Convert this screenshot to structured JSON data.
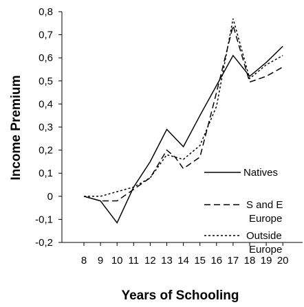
{
  "chart_data": {
    "type": "line",
    "title": "",
    "xlabel": "Years of Schooling",
    "ylabel": "Income Premium",
    "x": [
      8,
      9,
      10,
      11,
      12,
      13,
      14,
      15,
      16,
      17,
      18,
      19,
      20
    ],
    "x_tick_labels": [
      "8",
      "9",
      "10",
      "11",
      "12",
      "13",
      "14",
      "15",
      "16",
      "17",
      "18",
      "19",
      "20"
    ],
    "xlim": [
      7.5,
      20.5
    ],
    "ylim": [
      -0.2,
      0.8
    ],
    "y_ticks": [
      -0.2,
      -0.1,
      0,
      0.1,
      0.2,
      0.3,
      0.4,
      0.5,
      0.6,
      0.7,
      0.8
    ],
    "y_tick_labels": [
      "-0,2",
      "-0,1",
      "0",
      "0,1",
      "0,2",
      "0,3",
      "0,4",
      "0,5",
      "0,6",
      "0,7",
      "0,8"
    ],
    "grid": false,
    "legend_position": "right",
    "series": [
      {
        "name": "Natives",
        "style": "solid",
        "color": "#000000",
        "x": [
          8,
          9,
          10,
          11,
          12,
          13,
          14,
          15,
          16,
          17,
          18,
          19,
          20
        ],
        "y": [
          0.0,
          -0.02,
          -0.115,
          0.04,
          0.15,
          0.29,
          0.215,
          0.35,
          0.48,
          0.61,
          0.52,
          0.58,
          0.65
        ]
      },
      {
        "name": "S and E Europe",
        "style": "dashed",
        "color": "#000000",
        "x": [
          8,
          9,
          10,
          11,
          12,
          13,
          13.5,
          14,
          15,
          15.5,
          16,
          17,
          18,
          19,
          20
        ],
        "y": [
          0.0,
          -0.02,
          -0.02,
          0.03,
          0.08,
          0.2,
          0.17,
          0.12,
          0.17,
          0.31,
          0.45,
          0.74,
          0.495,
          0.52,
          0.56
        ]
      },
      {
        "name": "Outside Europe",
        "style": "dotted",
        "color": "#000000",
        "x": [
          8,
          9,
          10,
          11,
          12,
          13,
          14,
          15,
          16,
          17,
          18,
          19,
          20
        ],
        "y": [
          0.0,
          0.0,
          0.02,
          0.04,
          0.08,
          0.18,
          0.16,
          0.22,
          0.39,
          0.77,
          0.51,
          0.57,
          0.61
        ]
      }
    ]
  }
}
